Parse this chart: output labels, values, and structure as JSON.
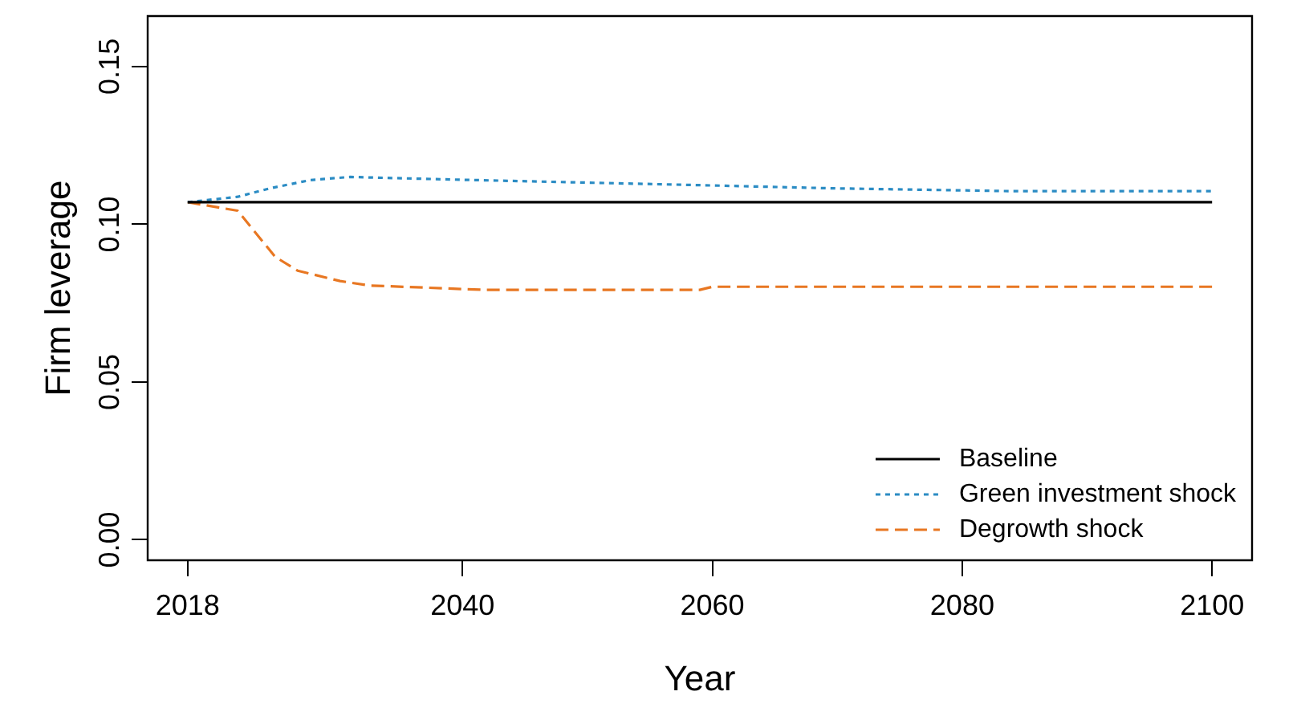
{
  "chart_data": {
    "type": "line",
    "xlabel": "Year",
    "ylabel": "Firm leverage",
    "xlim": [
      2014.8,
      2103.2
    ],
    "xticks": [
      2018,
      2040,
      2060,
      2080,
      2100
    ],
    "ylim": [
      -0.0065,
      0.166
    ],
    "yticks": [
      {
        "value": 0,
        "label": "0.00"
      },
      {
        "value": 0.05,
        "label": "0.05"
      },
      {
        "value": 0.1,
        "label": "0.10"
      },
      {
        "value": 0.15,
        "label": "0.15"
      }
    ],
    "grid": false,
    "legend": "bottom right",
    "marker": "none",
    "series": [
      {
        "name": "Baseline",
        "color": "#000000",
        "line_style": "solid",
        "x": [
          2018,
          2100
        ],
        "values": [
          0.107,
          0.107
        ]
      },
      {
        "name": "Green investment shock",
        "color": "#2b8cc4",
        "line_style": "dotted",
        "x": [
          2018,
          2022,
          2024.6,
          2027.8,
          2031,
          2040,
          2050,
          2059,
          2069.5,
          2084,
          2100
        ],
        "values": [
          0.107,
          0.1087,
          0.1114,
          0.114,
          0.115,
          0.1141,
          0.1132,
          0.1124,
          0.1114,
          0.1105,
          0.1105
        ]
      },
      {
        "name": "Degrowth shock",
        "color": "#e87722",
        "line_style": "dashed",
        "x": [
          2018,
          2022,
          2025,
          2026.8,
          2030.2,
          2032.5,
          2041.8,
          2059,
          2060,
          2100
        ],
        "values": [
          0.107,
          0.1043,
          0.0897,
          0.0853,
          0.082,
          0.0806,
          0.0792,
          0.0792,
          0.0802,
          0.0802
        ]
      }
    ]
  }
}
